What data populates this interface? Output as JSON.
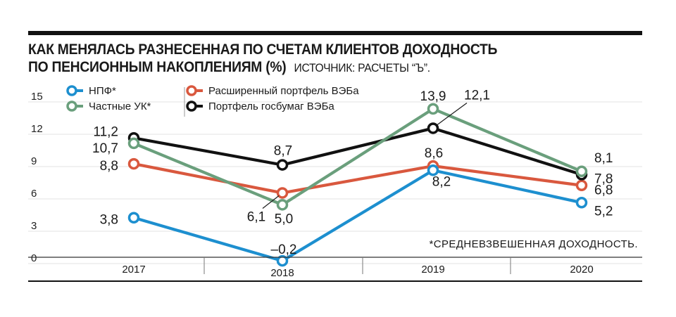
{
  "title_line1": "КАК МЕНЯЛАСЬ РАЗНЕСЕННАЯ ПО СЧЕТАМ КЛИЕНТОВ ДОХОДНОСТЬ",
  "title_line2": "ПО ПЕНСИОННЫМ НАКОПЛЕНИЯМ (%)",
  "source": "ИСТОЧНИК: РАСЧЕТЫ “Ъ”.",
  "footnote": "*СРЕДНЕВЗВЕШЕННАЯ ДОХОДНОСТЬ.",
  "colors": {
    "npf": "#1d8fcf",
    "uk": "#6a9f7c",
    "ext": "#d9583e",
    "gov": "#111111"
  },
  "chart_data": {
    "type": "line",
    "title": "КАК МЕНЯЛАСЬ РАЗНЕСЕННАЯ ПО СЧЕТАМ КЛИЕНТОВ ДОХОДНОСТЬ ПО ПЕНСИОННЫМ НАКОПЛЕНИЯМ (%)",
    "categories": [
      "2017",
      "2018",
      "2019",
      "2020"
    ],
    "yticks": [
      "15",
      "12",
      "9",
      "6",
      "3",
      "0"
    ],
    "ylim": [
      0,
      15
    ],
    "series": [
      {
        "key": "npf",
        "name": "НПФ*",
        "values": [
          3.8,
          -0.2,
          8.2,
          5.2
        ],
        "labels": [
          "3,8",
          "–0,2",
          "8,2",
          "5,2"
        ]
      },
      {
        "key": "uk",
        "name": "Частные УК*",
        "values": [
          10.7,
          5.0,
          13.9,
          8.1
        ],
        "labels": [
          "10,7",
          "5,0",
          "13,9",
          "8,1"
        ]
      },
      {
        "key": "ext",
        "name": "Расширенный портфель ВЭБа",
        "values": [
          8.8,
          6.1,
          8.6,
          6.8
        ],
        "labels": [
          "8,8",
          "6,1",
          "8,6",
          "6,8"
        ]
      },
      {
        "key": "gov",
        "name": "Портфель госбумаг ВЭБа",
        "values": [
          11.2,
          8.7,
          12.1,
          7.8
        ],
        "labels": [
          "11,2",
          "8,7",
          "12,1",
          "7,8"
        ]
      }
    ]
  }
}
